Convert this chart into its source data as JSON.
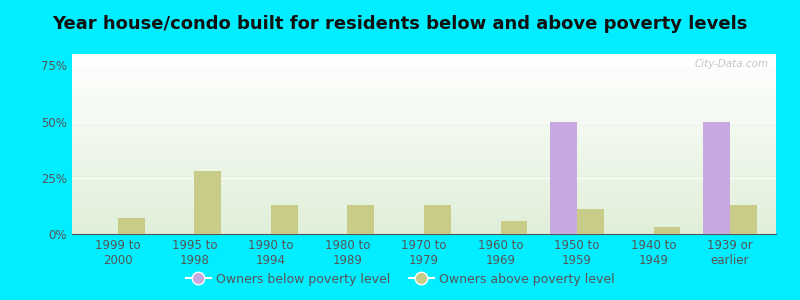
{
  "title": "Year house/condo built for residents below and above poverty levels",
  "categories": [
    "1999 to\n2000",
    "1995 to\n1998",
    "1990 to\n1994",
    "1980 to\n1989",
    "1970 to\n1979",
    "1960 to\n1969",
    "1950 to\n1959",
    "1940 to\n1949",
    "1939 or\nearlier"
  ],
  "below_poverty": [
    0,
    0,
    0,
    0,
    0,
    0,
    50,
    0,
    50
  ],
  "above_poverty": [
    7,
    28,
    13,
    13,
    13,
    6,
    11,
    3,
    13
  ],
  "below_color": "#c8a8e0",
  "above_color": "#c8cc88",
  "bg_color": "#00eeff",
  "plot_bg_color": "#e8f5e0",
  "ylim": [
    0,
    80
  ],
  "yticks": [
    0,
    25,
    50,
    75
  ],
  "ytick_labels": [
    "0%",
    "25%",
    "50%",
    "75%"
  ],
  "bar_width": 0.35,
  "title_fontsize": 13,
  "tick_fontsize": 8.5,
  "legend_fontsize": 9,
  "grid_color": "#ffffff",
  "tick_color": "#555555",
  "watermark": "City-Data.com"
}
